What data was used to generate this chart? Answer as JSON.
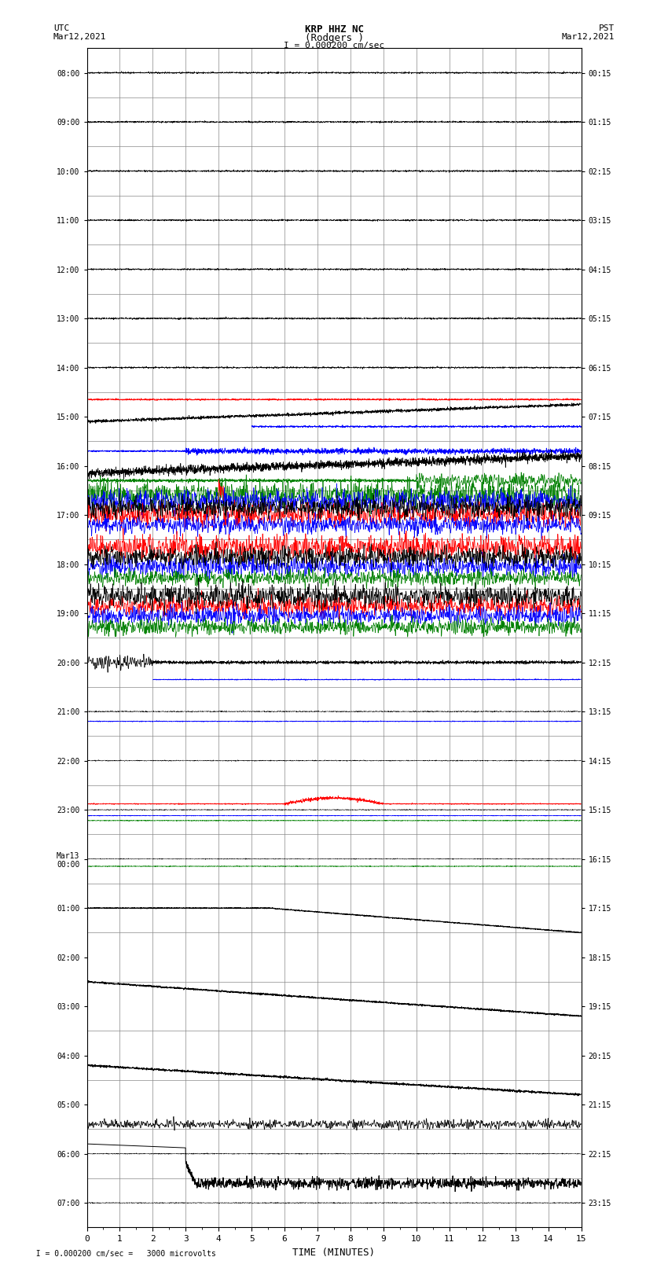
{
  "title_line1": "KRP HHZ NC",
  "title_line2": "(Rodgers )",
  "title_line3": "I = 0.000200 cm/sec",
  "label_utc": "UTC",
  "label_date_utc": "Mar12,2021",
  "label_pst": "PST",
  "label_date_pst": "Mar12,2021",
  "xlabel": "TIME (MINUTES)",
  "footer": "  I = 0.000200 cm/sec =   3000 microvolts",
  "left_labels": [
    "08:00",
    "09:00",
    "10:00",
    "11:00",
    "12:00",
    "13:00",
    "14:00",
    "15:00",
    "16:00",
    "17:00",
    "18:00",
    "19:00",
    "20:00",
    "21:00",
    "22:00",
    "23:00",
    "Mar13\n00:00",
    "01:00",
    "02:00",
    "03:00",
    "04:00",
    "05:00",
    "06:00",
    "07:00"
  ],
  "right_labels": [
    "00:15",
    "01:15",
    "02:15",
    "03:15",
    "04:15",
    "05:15",
    "06:15",
    "07:15",
    "08:15",
    "09:15",
    "10:15",
    "11:15",
    "12:15",
    "13:15",
    "14:15",
    "15:15",
    "16:15",
    "17:15",
    "18:15",
    "19:15",
    "20:15",
    "21:15",
    "22:15",
    "23:15"
  ],
  "n_rows": 24,
  "x_min": 0,
  "x_max": 15,
  "bg_color": "#ffffff",
  "grid_color": "#888888",
  "line_color_black": "#000000",
  "line_color_red": "#ff0000",
  "line_color_blue": "#0000ff",
  "line_color_green": "#008000"
}
